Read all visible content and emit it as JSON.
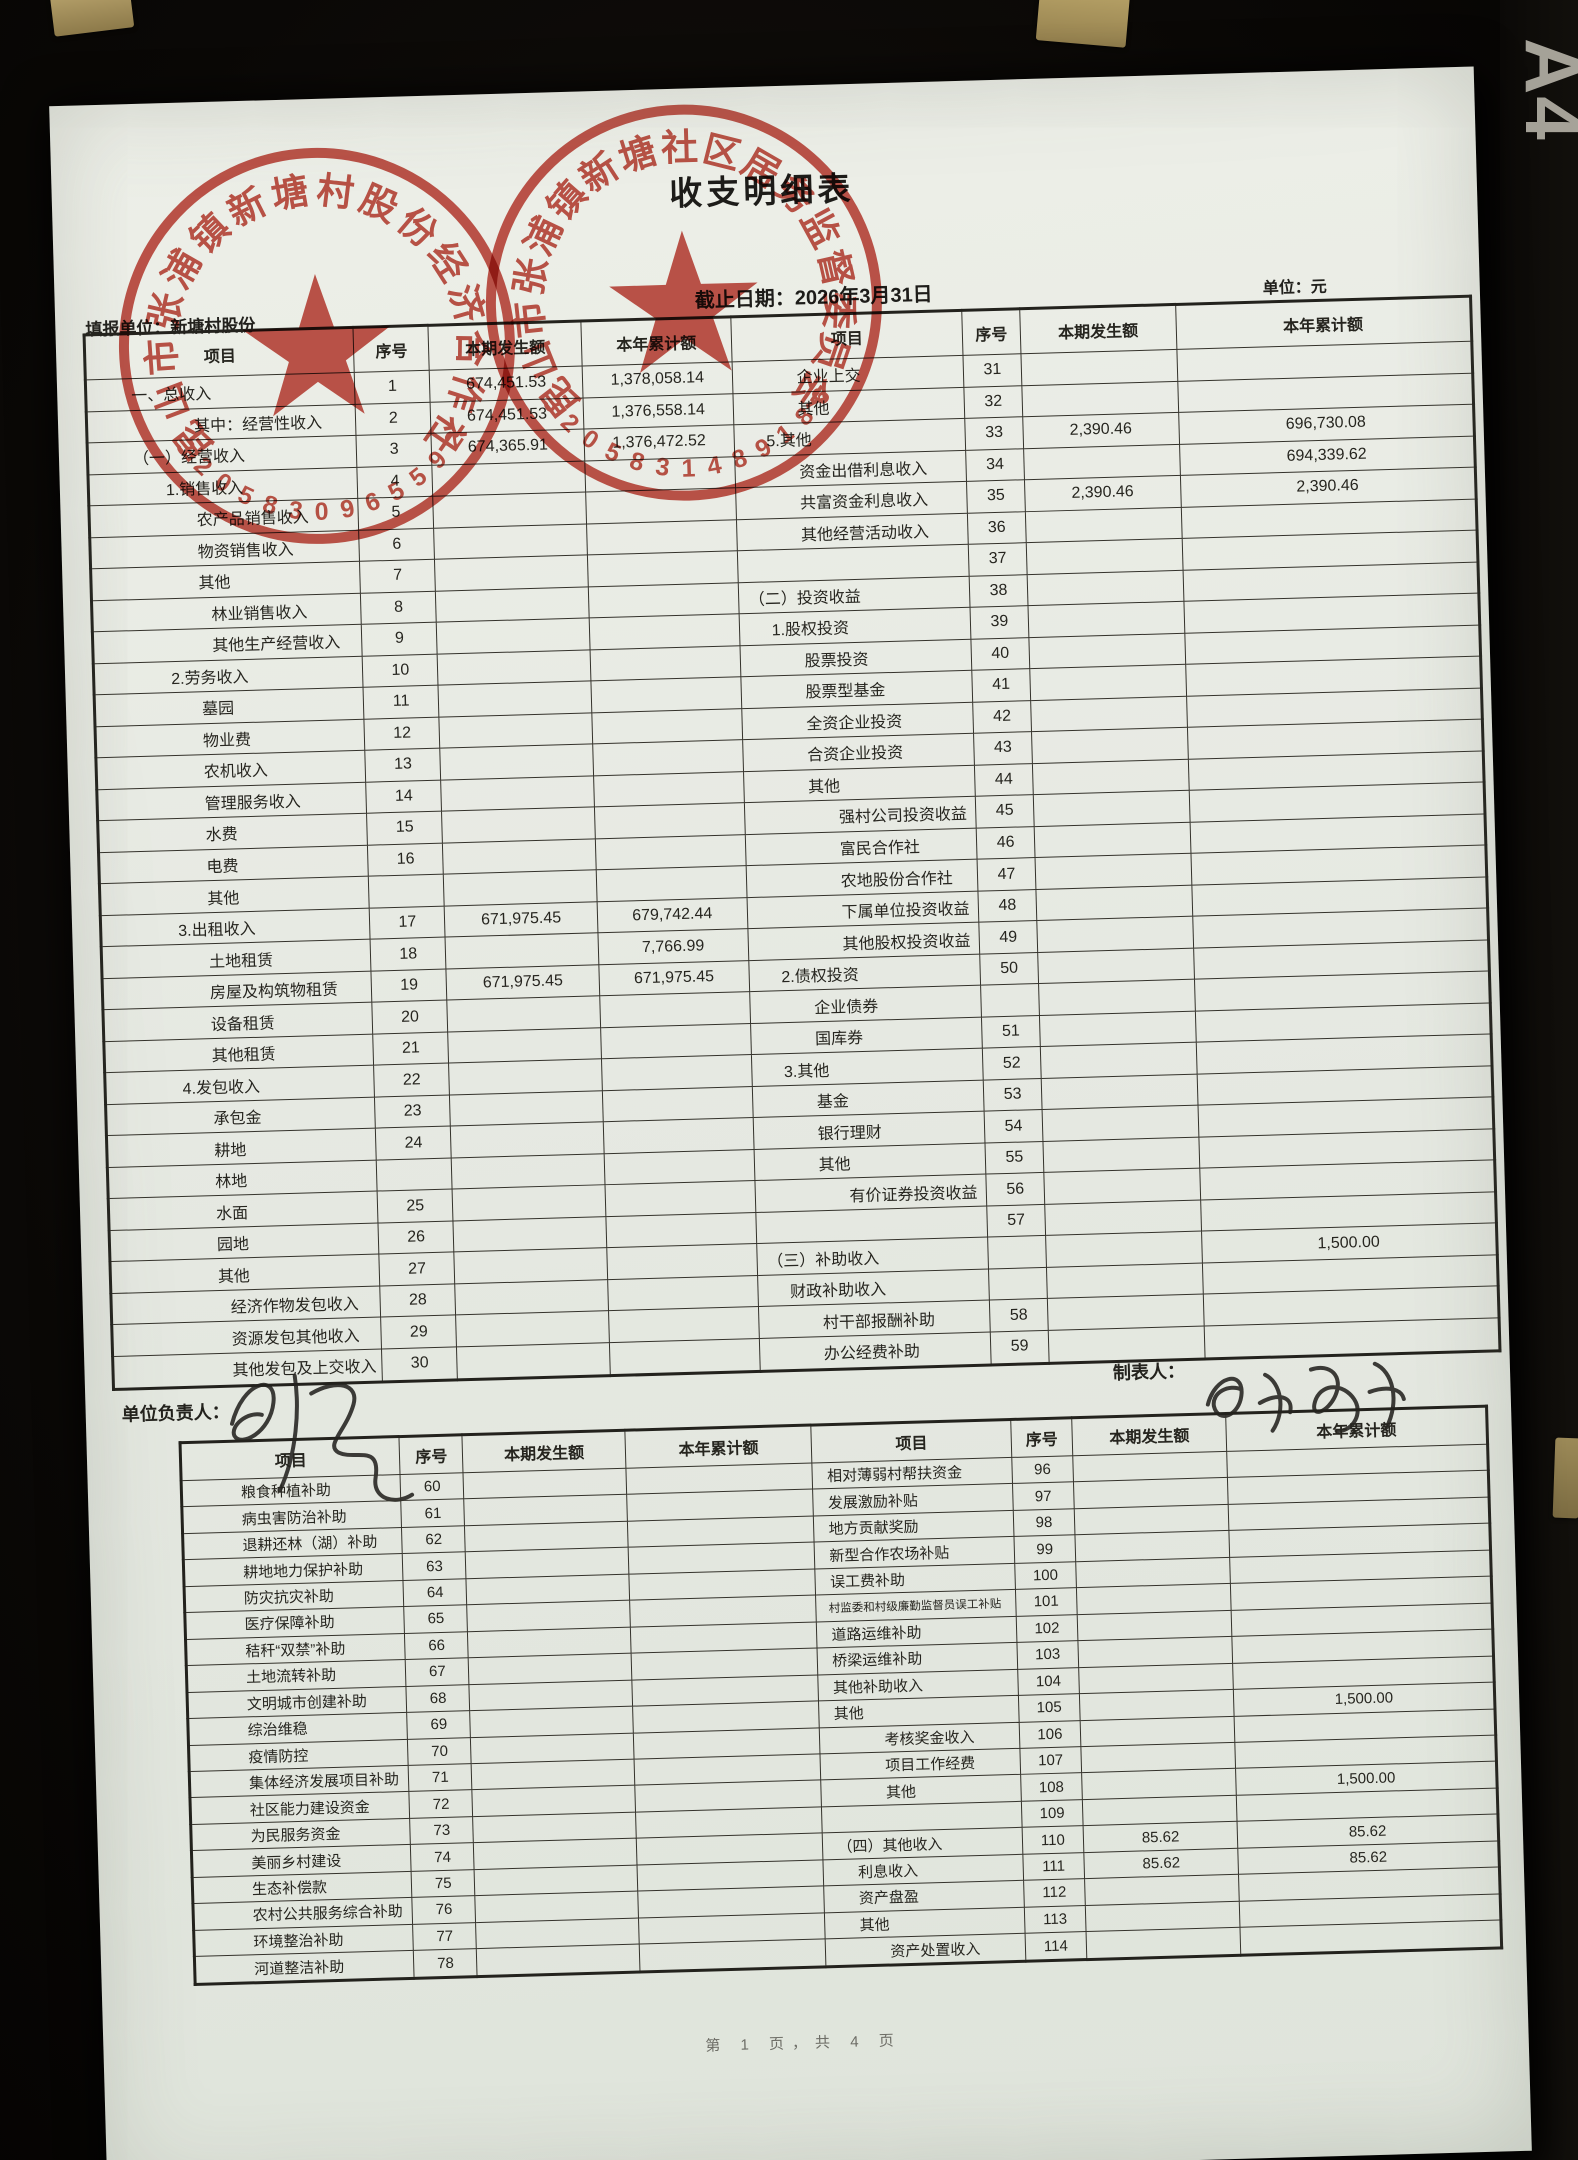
{
  "page": {
    "title": "收支明细表",
    "report_unit": "填报单位：新塘村股份",
    "deadline": "截止日期：2026年3月31日",
    "unit_label": "单位：元",
    "responsible_label": "单位负责人：",
    "preparer_label": "制表人：",
    "footer": "第 1 页，共 4 页",
    "paper_size_mark": "A4"
  },
  "stamps": [
    {
      "name": "village-cooperative-seal",
      "text": "昆山市张浦镇新塘村股份经济合作社",
      "number": "3205830965592",
      "color": "#bc3226"
    },
    {
      "name": "community-supervision-seal",
      "text": "昆山市张浦镇新塘社区居务监督委员会",
      "number": "3205831489186",
      "color": "#bc3226"
    }
  ],
  "headers": [
    "项目",
    "序号",
    "本期发生额",
    "本年累计额"
  ],
  "t1": {
    "left": [
      {
        "t": "一、总收入",
        "n": "1",
        "c": "674,451.53",
        "y": "1,378,058.14",
        "i": 0
      },
      {
        "t": "其中：经营性收入",
        "n": "2",
        "c": "674,451.53",
        "y": "1,376,558.14",
        "i": 2
      },
      {
        "t": "（一）经营收入",
        "n": "3",
        "c": "674,365.91",
        "y": "1,376,472.52",
        "i": 0
      },
      {
        "t": "1.销售收入",
        "n": "4",
        "i": 1
      },
      {
        "t": "农产品销售收入",
        "n": "5",
        "i": 2
      },
      {
        "t": "物资销售收入",
        "n": "6",
        "i": 2
      },
      {
        "t": "其他",
        "n": "7",
        "i": 2
      },
      {
        "t": "林业销售收入",
        "n": "8",
        "i": 3
      },
      {
        "t": "其他生产经营收入",
        "n": "9",
        "i": 3
      },
      {
        "t": "2.劳务收入",
        "n": "10",
        "i": 1
      },
      {
        "t": "墓园",
        "n": "11",
        "i": 2
      },
      {
        "t": "物业费",
        "n": "12",
        "i": 2
      },
      {
        "t": "农机收入",
        "n": "13",
        "i": 2
      },
      {
        "t": "管理服务收入",
        "n": "14",
        "i": 2
      },
      {
        "t": "水费",
        "n": "15",
        "i": 2
      },
      {
        "t": "电费",
        "n": "16",
        "i": 2
      },
      {
        "t": "其他",
        "i": 2
      },
      {
        "t": "3.出租收入",
        "n": "17",
        "c": "671,975.45",
        "y": "679,742.44",
        "i": 1
      },
      {
        "t": "土地租赁",
        "n": "18",
        "y": "7,766.99",
        "i": 2
      },
      {
        "t": "房屋及构筑物租赁",
        "n": "19",
        "c": "671,975.45",
        "y": "671,975.45",
        "i": 2
      },
      {
        "t": "设备租赁",
        "n": "20",
        "i": 2
      },
      {
        "t": "其他租赁",
        "n": "21",
        "i": 2
      },
      {
        "t": "4.发包收入",
        "n": "22",
        "i": 1
      },
      {
        "t": "承包金",
        "n": "23",
        "i": 2
      },
      {
        "t": "耕地",
        "n": "24",
        "i": 2
      },
      {
        "t": "林地",
        "i": 2
      },
      {
        "t": "水面",
        "n": "25",
        "i": 2
      },
      {
        "t": "园地",
        "n": "26",
        "i": 2
      },
      {
        "t": "其他",
        "n": "27",
        "i": 2
      },
      {
        "t": "经济作物发包收入",
        "n": "28",
        "i": 3
      },
      {
        "t": "资源发包其他收入",
        "n": "29",
        "i": 3
      },
      {
        "t": "其他发包及上交收入",
        "n": "30",
        "i": 3
      }
    ],
    "right": [
      {
        "t": "企业上交",
        "n": "31",
        "i": 2
      },
      {
        "t": "其他",
        "n": "32",
        "i": 2
      },
      {
        "t": "5.其他",
        "n": "33",
        "c": "2,390.46",
        "y": "696,730.08",
        "i": 1
      },
      {
        "t": "资金出借利息收入",
        "n": "34",
        "y": "694,339.62",
        "i": 2
      },
      {
        "t": "共富资金利息收入",
        "n": "35",
        "c": "2,390.46",
        "y": "2,390.46",
        "i": 2
      },
      {
        "t": "其他经营活动收入",
        "n": "36",
        "i": 2
      },
      {
        "n": "37"
      },
      {
        "t": "（二）投资收益",
        "n": "38",
        "i": 0
      },
      {
        "t": "1.股权投资",
        "n": "39",
        "i": 1
      },
      {
        "t": "股票投资",
        "n": "40",
        "i": 2
      },
      {
        "t": "股票型基金",
        "n": "41",
        "i": 2
      },
      {
        "t": "全资企业投资",
        "n": "42",
        "i": 2
      },
      {
        "t": "合资企业投资",
        "n": "43",
        "i": 2
      },
      {
        "t": "其他",
        "n": "44",
        "i": 2
      },
      {
        "t": "强村公司投资收益",
        "n": "45",
        "i": 3
      },
      {
        "t": "富民合作社",
        "n": "46",
        "i": 3
      },
      {
        "t": "农地股份合作社",
        "n": "47",
        "i": 3
      },
      {
        "t": "下属单位投资收益",
        "n": "48",
        "i": 3
      },
      {
        "t": "其他股权投资收益",
        "n": "49",
        "i": 3
      },
      {
        "t": "2.债权投资",
        "n": "50",
        "i": 1
      },
      {
        "t": "企业债券",
        "i": 2
      },
      {
        "t": "国库券",
        "n": "51",
        "i": 2
      },
      {
        "t": "3.其他",
        "n": "52",
        "i": 1
      },
      {
        "t": "基金",
        "n": "53",
        "i": 2
      },
      {
        "t": "银行理财",
        "n": "54",
        "i": 2
      },
      {
        "t": "其他",
        "n": "55",
        "i": 2
      },
      {
        "t": "有价证券投资收益",
        "n": "56",
        "i": 3
      },
      {
        "n": "57"
      },
      {
        "t": "（三）补助收入",
        "y": "1,500.00",
        "i": 0
      },
      {
        "t": "财政补助收入",
        "i": 1
      },
      {
        "t": "村干部报酬补助",
        "n": "58",
        "i": 2
      },
      {
        "t": "办公经费补助",
        "n": "59",
        "i": 2
      }
    ]
  },
  "t2": {
    "left": [
      {
        "t": "粮食种植补助",
        "n": "60",
        "i": 1
      },
      {
        "t": "病虫害防治补助",
        "n": "61",
        "i": 1
      },
      {
        "t": "退耕还林（湖）补助",
        "n": "62",
        "i": 1
      },
      {
        "t": "耕地地力保护补助",
        "n": "63",
        "i": 1
      },
      {
        "t": "防灾抗灾补助",
        "n": "64",
        "i": 1
      },
      {
        "t": "医疗保障补助",
        "n": "65",
        "i": 1
      },
      {
        "t": "秸秆“双禁”补助",
        "n": "66",
        "i": 1
      },
      {
        "t": "土地流转补助",
        "n": "67",
        "i": 1
      },
      {
        "t": "文明城市创建补助",
        "n": "68",
        "i": 1
      },
      {
        "t": "综治维稳",
        "n": "69",
        "i": 1
      },
      {
        "t": "疫情防控",
        "n": "70",
        "i": 1
      },
      {
        "t": "集体经济发展项目补助",
        "n": "71",
        "i": 1
      },
      {
        "t": "社区能力建设资金",
        "n": "72",
        "i": 1
      },
      {
        "t": "为民服务资金",
        "n": "73",
        "i": 1
      },
      {
        "t": "美丽乡村建设",
        "n": "74",
        "i": 1
      },
      {
        "t": "生态补偿款",
        "n": "75",
        "i": 1
      },
      {
        "t": "农村公共服务综合补助",
        "n": "76",
        "i": 1
      },
      {
        "t": "环境整治补助",
        "n": "77",
        "i": 1
      },
      {
        "t": "河道整洁补助",
        "n": "78",
        "i": 1
      }
    ],
    "right": [
      {
        "t": "相对薄弱村帮扶资金",
        "n": "96",
        "i": 0
      },
      {
        "t": "发展激励补贴",
        "n": "97",
        "i": 0
      },
      {
        "t": "地方贡献奖励",
        "n": "98",
        "i": 0
      },
      {
        "t": "新型合作农场补贴",
        "n": "99",
        "i": 0
      },
      {
        "t": "误工费补助",
        "n": "100",
        "i": 0
      },
      {
        "t": "村监委和村级廉勤监督员误工补贴",
        "n": "101",
        "i": 0
      },
      {
        "t": "道路运维补助",
        "n": "102",
        "i": 0
      },
      {
        "t": "桥梁运维补助",
        "n": "103",
        "i": 0
      },
      {
        "t": "其他补助收入",
        "n": "104",
        "i": 0
      },
      {
        "t": "其他",
        "n": "105",
        "y": "1,500.00",
        "i": 0
      },
      {
        "t": "考核奖金收入",
        "n": "106",
        "i": 2
      },
      {
        "t": "项目工作经费",
        "n": "107",
        "i": 2
      },
      {
        "t": "其他",
        "n": "108",
        "y": "1,500.00",
        "i": 2
      },
      {
        "n": "109"
      },
      {
        "t": "（四）其他收入",
        "n": "110",
        "c": "85.62",
        "y": "85.62",
        "i": 0
      },
      {
        "t": "利息收入",
        "n": "111",
        "c": "85.62",
        "y": "85.62",
        "i": 1
      },
      {
        "t": "资产盘盈",
        "n": "112",
        "i": 1
      },
      {
        "t": "其他",
        "n": "113",
        "i": 1
      },
      {
        "t": "资产处置收入",
        "n": "114",
        "i": 2
      }
    ]
  }
}
